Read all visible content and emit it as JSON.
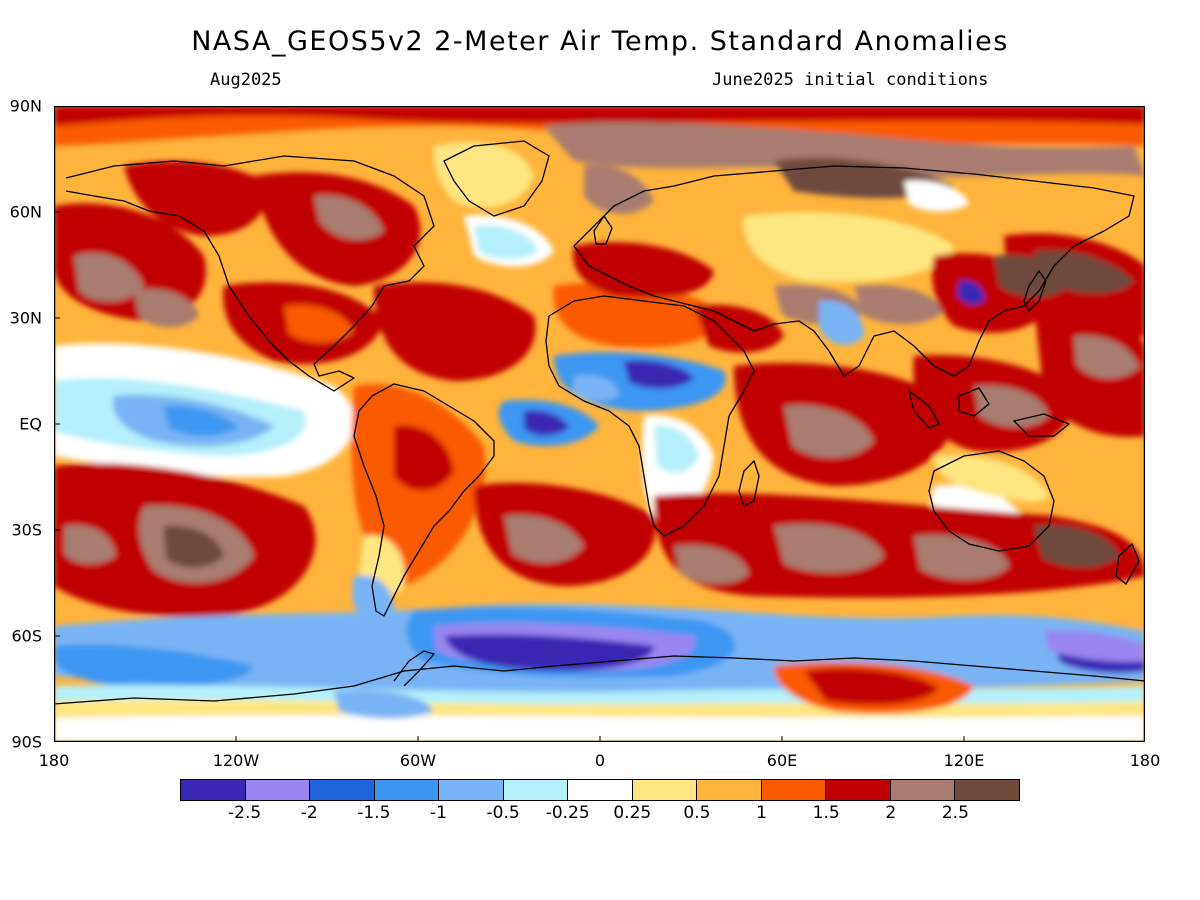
{
  "title": "NASA_GEOS5v2 2-Meter Air Temp. Standard Anomalies",
  "subtitle_left": "Aug2025",
  "subtitle_right": "June2025 initial conditions",
  "lat_labels": [
    "90N",
    "60N",
    "30N",
    "EQ",
    "30S",
    "60S",
    "90S"
  ],
  "lon_labels": [
    "180",
    "120W",
    "60W",
    "0",
    "60E",
    "120E",
    "180"
  ],
  "colorbar": {
    "colors": [
      "#3a28b4",
      "#9a86f0",
      "#1e64dc",
      "#3c96f0",
      "#78b4f5",
      "#b4f0fa",
      "#ffffff",
      "#ffe682",
      "#ffb43c",
      "#fa5a00",
      "#c00000",
      "#a87c70",
      "#6e4a3c"
    ],
    "labels": [
      "-2.5",
      "-2",
      "-1.5",
      "-1",
      "-0.5",
      "-0.25",
      "0.25",
      "0.5",
      "1",
      "1.5",
      "2",
      "2.5"
    ]
  },
  "map": {
    "background_color": "#ffb43c",
    "legend_bins": [
      "< -2.5",
      "-2.5 to -2",
      "-2 to -1.5",
      "-1.5 to -1",
      "-1 to -0.5",
      "-0.5 to -0.25",
      "-0.25 to 0.25",
      "0.25 to 0.5",
      "0.5 to 1",
      "1 to 1.5",
      "1.5 to 2",
      "2 to 2.5",
      "> 2.5"
    ]
  }
}
